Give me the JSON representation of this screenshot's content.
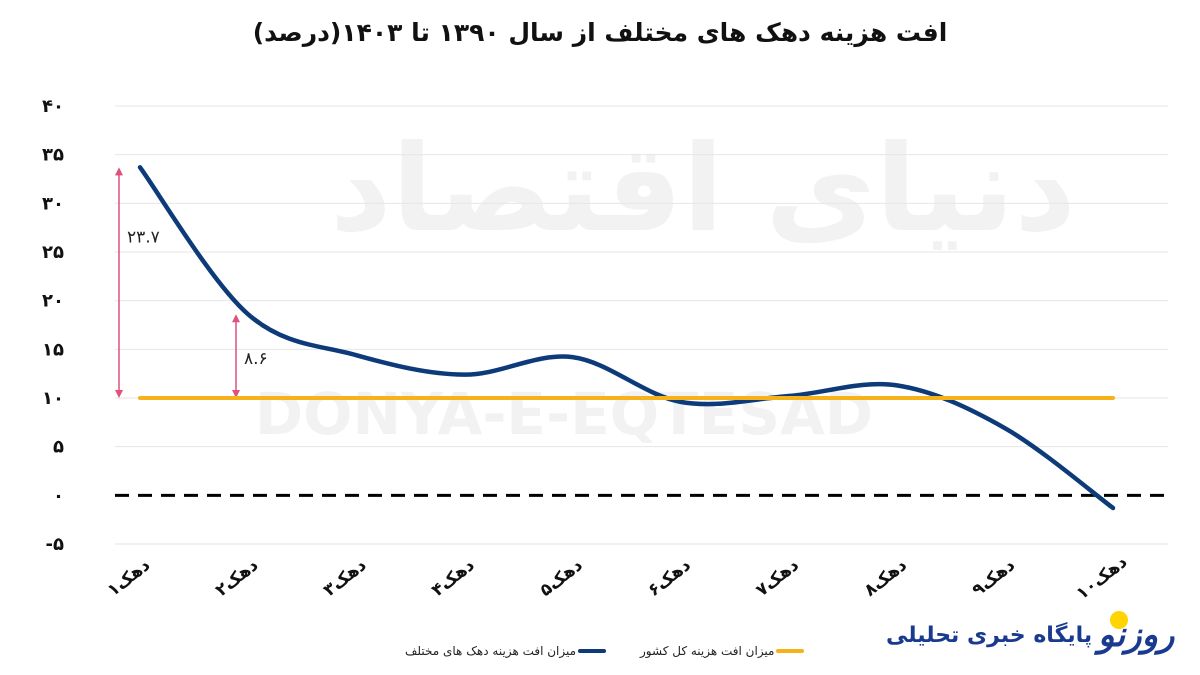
{
  "chart_data": {
    "type": "line",
    "title": "افت هزینه دهک های مختلف از سال ۱۳۹۰ تا ۱۴۰۳(درصد)",
    "categories": [
      "دهک۱",
      "دهک۲",
      "دهک۳",
      "دهک۴",
      "دهک۵",
      "دهک۶",
      "دهک۷",
      "دهک۸",
      "دهک۹",
      "دهک۱۰"
    ],
    "series": [
      {
        "name": "میزان افت هزینه دهک های مختلف",
        "color": "#0d3b7a",
        "values": [
          33.7,
          18.6,
          14.4,
          12.4,
          14.2,
          9.6,
          10.2,
          11.3,
          6.9,
          -1.3
        ]
      },
      {
        "name": "میزان افت هزینه کل کشور",
        "color": "#f5b21b",
        "values": [
          10,
          10,
          10,
          10,
          10,
          10,
          10,
          10,
          10,
          10
        ]
      }
    ],
    "ylim": [
      -5,
      40
    ],
    "yticks": [
      40,
      35,
      30,
      25,
      20,
      15,
      10,
      5,
      0,
      -5
    ],
    "ytick_labels": [
      "۴۰",
      "۳۵",
      "۳۰",
      "۲۵",
      "۲۰",
      "۱۵",
      "۱۰",
      "۵",
      "۰",
      "-۵"
    ],
    "grid": true,
    "zero_line": "dashed",
    "legend_position": "bottom",
    "annotations": [
      {
        "category": "دهک۱",
        "from": 10,
        "to": 33.7,
        "label": "۲۳.۷",
        "color": "#e0507a"
      },
      {
        "category": "دهک۲",
        "from": 10,
        "to": 18.6,
        "label": "۸.۶",
        "color": "#e0507a"
      }
    ]
  },
  "watermark": {
    "fa": "دنیای اقتصاد",
    "en": "DONYA-E-EQTESAD"
  },
  "logo": {
    "text": "پایگاه خبری تحلیلی",
    "mark": "روزنو"
  }
}
